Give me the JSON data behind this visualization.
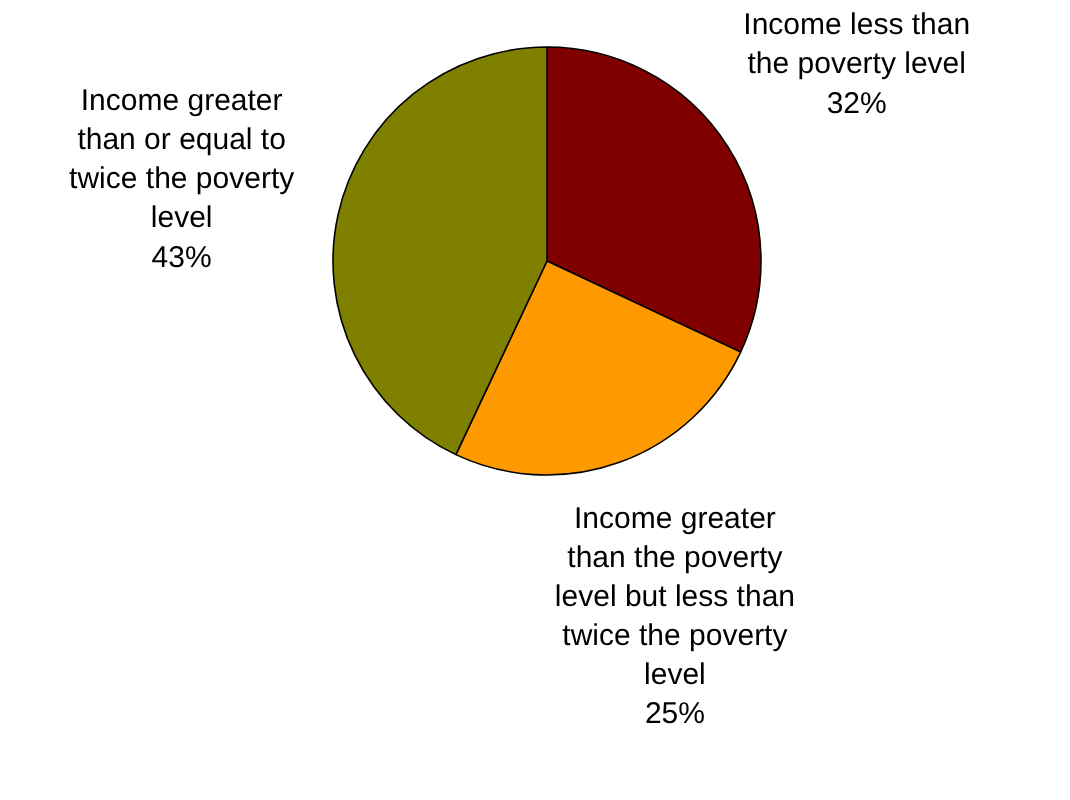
{
  "chart_data": {
    "type": "pie",
    "categories": [
      "Income less than\nthe poverty level",
      "Income greater\nthan the poverty\nlevel but less than\ntwice the poverty\nlevel",
      "Income greater\nthan or equal to\ntwice the poverty\nlevel"
    ],
    "values": [
      32,
      25,
      43
    ],
    "colors": [
      "#800000",
      "#ff9900",
      "#808000"
    ],
    "value_labels": [
      "32%",
      "25%",
      "43%"
    ]
  }
}
